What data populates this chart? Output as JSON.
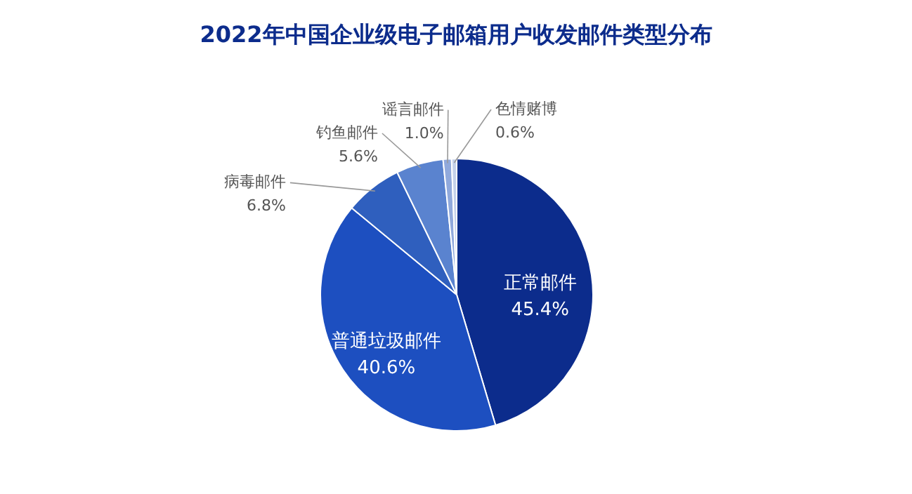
{
  "chart_data": {
    "type": "pie",
    "title": "2022年中国企业级电子邮箱用户收发邮件类型分布",
    "categories": [
      "正常邮件",
      "普通垃圾邮件",
      "病毒邮件",
      "钓鱼邮件",
      "谣言邮件",
      "色情赌博"
    ],
    "values": [
      45.4,
      40.6,
      6.8,
      5.6,
      1.0,
      0.6
    ],
    "colors": [
      "#0c2c8c",
      "#1d4fc0",
      "#2f5fbe",
      "#5a83cf",
      "#90a9dc",
      "#c4d1ea"
    ],
    "value_labels": [
      "45.4%",
      "40.6%",
      "6.8%",
      "5.6%",
      "1.0%",
      "0.6%"
    ]
  }
}
